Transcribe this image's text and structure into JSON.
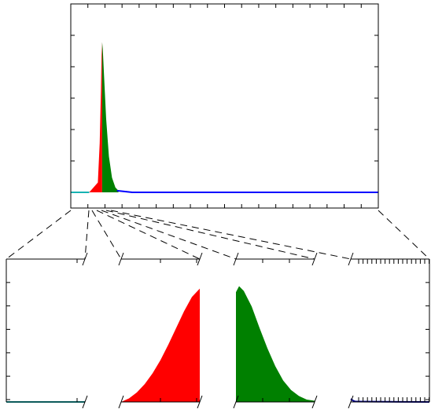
{
  "colors": {
    "cyan": "#17b3b3",
    "red": "#ff0000",
    "green": "#008000",
    "blue": "#0000ff",
    "navy": "#00008b",
    "axis": "#000000"
  },
  "chart_data": [
    {
      "panel": "overview",
      "type": "area",
      "title": "",
      "xlabel": "",
      "ylabel": "",
      "xlim": [
        0,
        1
      ],
      "ylim": [
        0,
        1
      ],
      "grid": false,
      "legend": "none",
      "series": [
        {
          "color": "cyan",
          "x": [
            0.0,
            0.06
          ],
          "y": [
            0.0,
            0.0
          ]
        },
        {
          "color": "red",
          "x": [
            0.06,
            0.088,
            0.094,
            0.098,
            0.1,
            0.102
          ],
          "y": [
            0.0,
            0.06,
            0.3,
            0.62,
            0.84,
            0.92
          ]
        },
        {
          "color": "green",
          "x": [
            0.102,
            0.104,
            0.108,
            0.115,
            0.124,
            0.134,
            0.145,
            0.155
          ],
          "y": [
            0.92,
            0.88,
            0.72,
            0.45,
            0.22,
            0.09,
            0.03,
            0.01
          ]
        },
        {
          "color": "blue",
          "x": [
            0.15,
            0.2,
            1.0
          ],
          "y": [
            0.01,
            0.0,
            0.0
          ]
        }
      ]
    },
    {
      "panel": "zoom-1",
      "type": "line",
      "color": "cyan",
      "x": [
        0,
        1
      ],
      "y": [
        0,
        0
      ],
      "ylim": [
        0,
        1
      ]
    },
    {
      "panel": "zoom-2",
      "type": "area",
      "color": "red",
      "x": [
        0.0,
        0.1,
        0.2,
        0.3,
        0.4,
        0.5,
        0.6,
        0.7,
        0.8,
        0.9,
        1.0
      ],
      "y": [
        0.0,
        0.03,
        0.08,
        0.15,
        0.24,
        0.35,
        0.48,
        0.62,
        0.76,
        0.88,
        0.95
      ],
      "ylim": [
        0,
        1
      ]
    },
    {
      "panel": "zoom-3",
      "type": "area",
      "color": "green",
      "x": [
        0.0,
        0.04,
        0.1,
        0.2,
        0.3,
        0.4,
        0.5,
        0.6,
        0.7,
        0.8,
        0.9,
        1.0
      ],
      "y": [
        0.92,
        0.97,
        0.93,
        0.8,
        0.62,
        0.45,
        0.3,
        0.18,
        0.1,
        0.05,
        0.02,
        0.01
      ],
      "ylim": [
        0,
        1
      ]
    },
    {
      "panel": "zoom-4",
      "type": "line",
      "color": "navy",
      "x": [
        0.0,
        0.01,
        0.03,
        0.06,
        1.0
      ],
      "y": [
        0.025,
        0.02,
        0.01,
        0.003,
        0.0
      ],
      "ylim": [
        0,
        1
      ]
    }
  ]
}
